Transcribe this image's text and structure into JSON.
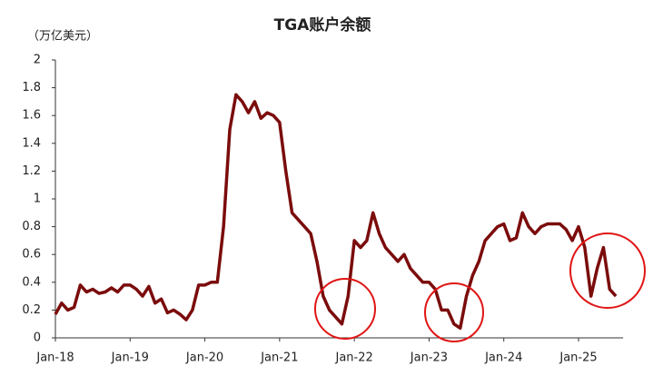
{
  "chart_data": {
    "type": "line",
    "title": "TGA账户余额",
    "y_label": "（万亿美元）",
    "categories": [
      "Jan-18",
      null,
      null,
      null,
      null,
      null,
      null,
      null,
      null,
      null,
      null,
      null,
      "Jan-19",
      null,
      null,
      null,
      null,
      null,
      null,
      null,
      null,
      null,
      null,
      null,
      "Jan-20",
      null,
      null,
      null,
      null,
      null,
      null,
      null,
      null,
      null,
      null,
      null,
      "Jan-21",
      null,
      null,
      null,
      null,
      null,
      null,
      null,
      null,
      null,
      null,
      null,
      "Jan-22",
      null,
      null,
      null,
      null,
      null,
      null,
      null,
      null,
      null,
      null,
      null,
      "Jan-23",
      null,
      null,
      null,
      null,
      null,
      null,
      null,
      null,
      null,
      null,
      null,
      "Jan-24",
      null,
      null,
      null,
      null,
      null,
      null,
      null,
      null,
      null,
      null,
      null,
      "Jan-25",
      null,
      null,
      null,
      null,
      null,
      null
    ],
    "series": [
      {
        "name": "TGA账户余额",
        "color": "#7b0c0c",
        "values": [
          0.17,
          0.25,
          0.2,
          0.22,
          0.38,
          0.33,
          0.35,
          0.32,
          0.33,
          0.36,
          0.33,
          0.38,
          0.38,
          0.35,
          0.3,
          0.37,
          0.25,
          0.28,
          0.18,
          0.2,
          0.17,
          0.13,
          0.2,
          0.38,
          0.38,
          0.4,
          0.4,
          0.8,
          1.5,
          1.75,
          1.7,
          1.62,
          1.7,
          1.58,
          1.62,
          1.6,
          1.55,
          1.2,
          0.9,
          0.85,
          0.8,
          0.75,
          0.55,
          0.3,
          0.2,
          0.15,
          0.1,
          0.3,
          0.7,
          0.65,
          0.7,
          0.9,
          0.75,
          0.65,
          0.6,
          0.55,
          0.6,
          0.5,
          0.45,
          0.4,
          0.4,
          0.35,
          0.2,
          0.2,
          0.1,
          0.07,
          0.3,
          0.45,
          0.55,
          0.7,
          0.75,
          0.8,
          0.82,
          0.7,
          0.72,
          0.9,
          0.8,
          0.75,
          0.8,
          0.82,
          0.82,
          0.82,
          0.78,
          0.7,
          0.8,
          0.65,
          0.3,
          0.5,
          0.65,
          0.35,
          0.3
        ]
      }
    ],
    "ylim": [
      0,
      2
    ],
    "yticks": [
      0,
      0.2,
      0.4,
      0.6,
      0.8,
      1,
      1.2,
      1.4,
      1.6,
      1.8,
      2
    ],
    "grid": false
  }
}
